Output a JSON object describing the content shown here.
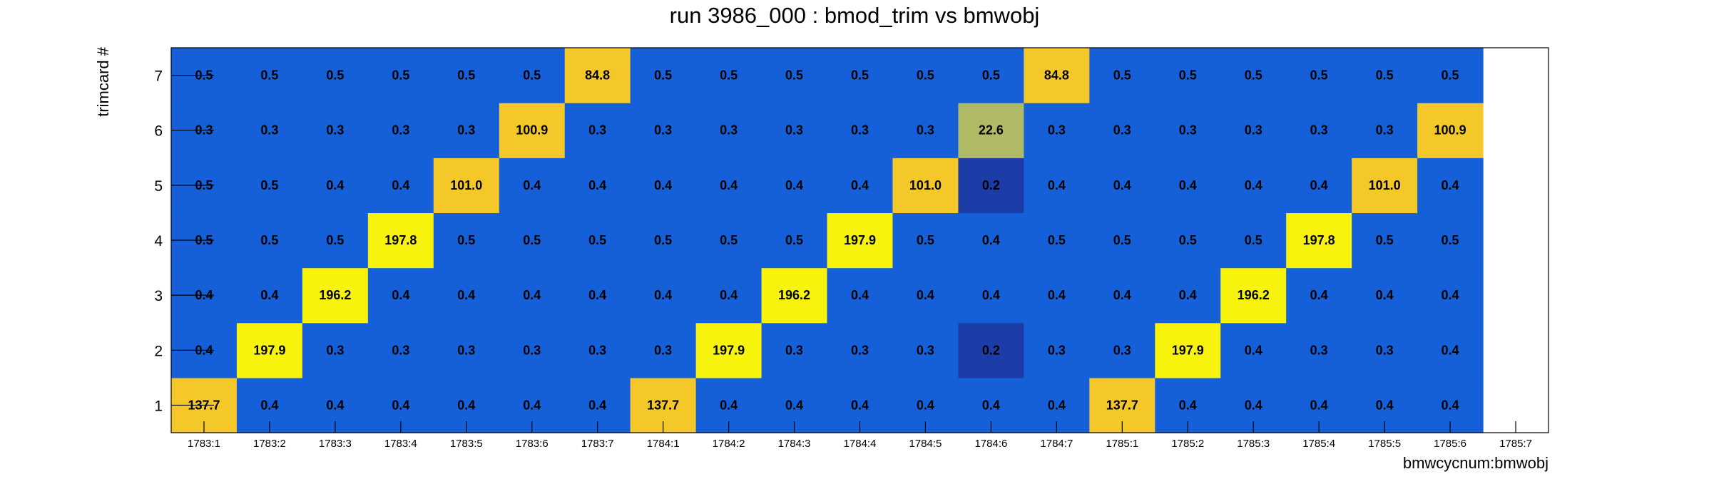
{
  "chart_data": {
    "type": "heatmap",
    "title": "run 3986_000 : bmod_trim vs bmwobj",
    "xlabel": "bmwcycnum:bmwobj",
    "ylabel": "trimcard #",
    "x_categories": [
      "1783:1",
      "1783:2",
      "1783:3",
      "1783:4",
      "1783:5",
      "1783:6",
      "1783:7",
      "1784:1",
      "1784:2",
      "1784:3",
      "1784:4",
      "1784:5",
      "1784:6",
      "1784:7",
      "1785:1",
      "1785:2",
      "1785:3",
      "1785:4",
      "1785:5",
      "1785:6",
      "1785:7"
    ],
    "y_categories": [
      "1",
      "2",
      "3",
      "4",
      "5",
      "6",
      "7"
    ],
    "values": [
      [
        "137.7",
        "0.4",
        "0.4",
        "0.4",
        "0.4",
        "0.4",
        "0.4",
        "137.7",
        "0.4",
        "0.4",
        "0.4",
        "0.4",
        "0.4",
        "0.4",
        "137.7",
        "0.4",
        "0.4",
        "0.4",
        "0.4",
        "0.4",
        null
      ],
      [
        "0.4",
        "197.9",
        "0.3",
        "0.3",
        "0.3",
        "0.3",
        "0.3",
        "0.3",
        "197.9",
        "0.3",
        "0.3",
        "0.3",
        "0.2",
        "0.3",
        "0.3",
        "197.9",
        "0.4",
        "0.3",
        "0.3",
        "0.4",
        null
      ],
      [
        "0.4",
        "0.4",
        "196.2",
        "0.4",
        "0.4",
        "0.4",
        "0.4",
        "0.4",
        "0.4",
        "196.2",
        "0.4",
        "0.4",
        "0.4",
        "0.4",
        "0.4",
        "0.4",
        "196.2",
        "0.4",
        "0.4",
        "0.4",
        null
      ],
      [
        "0.5",
        "0.5",
        "0.5",
        "197.8",
        "0.5",
        "0.5",
        "0.5",
        "0.5",
        "0.5",
        "0.5",
        "197.9",
        "0.5",
        "0.4",
        "0.5",
        "0.5",
        "0.5",
        "0.5",
        "197.8",
        "0.5",
        "0.5",
        null
      ],
      [
        "0.5",
        "0.5",
        "0.4",
        "0.4",
        "101.0",
        "0.4",
        "0.4",
        "0.4",
        "0.4",
        "0.4",
        "0.4",
        "101.0",
        "0.2",
        "0.4",
        "0.4",
        "0.4",
        "0.4",
        "0.4",
        "101.0",
        "0.4",
        null
      ],
      [
        "0.3",
        "0.3",
        "0.3",
        "0.3",
        "0.3",
        "100.9",
        "0.3",
        "0.3",
        "0.3",
        "0.3",
        "0.3",
        "0.3",
        "22.6",
        "0.3",
        "0.3",
        "0.3",
        "0.3",
        "0.3",
        "0.3",
        "100.9",
        null
      ],
      [
        "0.5",
        "0.5",
        "0.5",
        "0.5",
        "0.5",
        "0.5",
        "84.8",
        "0.5",
        "0.5",
        "0.5",
        "0.5",
        "0.5",
        "0.5",
        "84.8",
        "0.5",
        "0.5",
        "0.5",
        "0.5",
        "0.5",
        "0.5",
        null
      ]
    ],
    "colors": {
      "low": "#1c3ca8",
      "base": "#1560d9",
      "mid": "#b0ba65",
      "high": "#f5c82a",
      "top": "#f8f30d"
    },
    "legend": "none",
    "grid": false
  }
}
